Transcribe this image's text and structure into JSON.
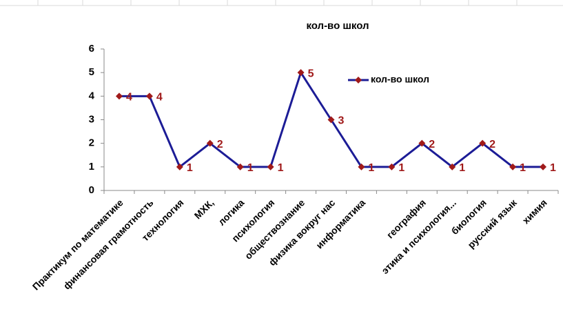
{
  "chart_data": {
    "type": "line",
    "title": "кол-во школ",
    "categories": [
      "Практикум по математике",
      "финансовая грамотность",
      "технология",
      "МХК,",
      "логика",
      "психология",
      "обществознание",
      "физика вокруг нас",
      "информатика",
      null,
      "география",
      "этика и психология...",
      "биология",
      "русский язык",
      "химия"
    ],
    "series": [
      {
        "name": "кол-во школ",
        "color": "#1c1c96",
        "marker_color": "#a01a1a",
        "values": [
          4,
          4,
          1,
          2,
          1,
          1,
          5,
          3,
          1,
          1,
          2,
          1,
          2,
          1,
          1
        ]
      }
    ],
    "ylim": [
      0,
      6
    ],
    "yticks": [
      0,
      1,
      2,
      3,
      4,
      5,
      6
    ],
    "grid": false,
    "legend": "right"
  }
}
